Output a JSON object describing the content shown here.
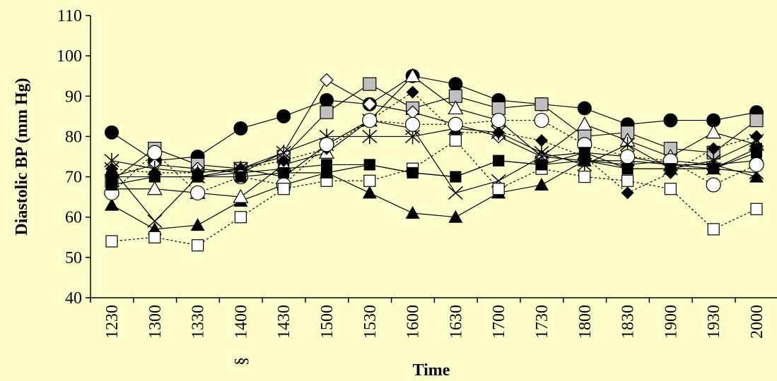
{
  "chart_data": {
    "type": "line",
    "xlabel": "Time",
    "ylabel": "Diastolic BP (mm Hg)",
    "ylim": [
      40,
      110
    ],
    "yticks": [
      40,
      50,
      60,
      70,
      80,
      90,
      100,
      110
    ],
    "categories": [
      "1230",
      "1300",
      "1330",
      "1400",
      "1430",
      "1500",
      "1530",
      "1600",
      "1630",
      "1700",
      "1730",
      "1800",
      "1830",
      "1900",
      "1930",
      "2000"
    ],
    "annotations": [
      {
        "text": "§",
        "category": "1400"
      }
    ],
    "grid": false,
    "series": [
      {
        "marker": "circle-filled",
        "line": "solid",
        "values": [
          81,
          74,
          75,
          82,
          85,
          89,
          88,
          95,
          93,
          89,
          88,
          87,
          83,
          84,
          84,
          86
        ]
      },
      {
        "marker": "square-gray",
        "line": "solid",
        "values": [
          69,
          77,
          73,
          72,
          75,
          86,
          93,
          87,
          90,
          87,
          88,
          80,
          81,
          77,
          76,
          84
        ]
      },
      {
        "marker": "diamond-open",
        "line": "solid",
        "values": [
          70,
          73,
          72,
          71,
          76,
          94,
          88,
          86,
          83,
          80,
          75,
          74,
          73,
          74,
          73,
          74
        ]
      },
      {
        "marker": "square-filled",
        "line": "solid",
        "values": [
          70,
          70,
          70,
          71,
          72,
          73,
          73,
          71,
          70,
          74,
          73,
          74,
          72,
          72,
          72,
          76
        ]
      },
      {
        "marker": "triangle-filled",
        "line": "solid",
        "values": [
          63,
          57,
          58,
          64,
          68,
          71,
          66,
          61,
          60,
          66,
          68,
          74,
          74,
          73,
          73,
          70
        ]
      },
      {
        "marker": "triangle-open",
        "line": "solid",
        "values": [
          67,
          67,
          66,
          65,
          73,
          76,
          84,
          95,
          87,
          84,
          75,
          83,
          79,
          75,
          81,
          78
        ]
      },
      {
        "marker": "x",
        "line": "solid",
        "values": [
          72,
          59,
          70,
          72,
          70,
          78,
          84,
          82,
          66,
          69,
          75,
          76,
          75,
          73,
          72,
          71
        ]
      },
      {
        "marker": "star",
        "line": "solid",
        "values": [
          74,
          72,
          71,
          72,
          76,
          80,
          80,
          80,
          82,
          81,
          76,
          73,
          78,
          72,
          74,
          79
        ]
      },
      {
        "marker": "diamond-filled",
        "line": "dotted",
        "values": [
          72,
          71,
          71,
          72,
          74,
          77,
          84,
          91,
          81,
          81,
          79,
          75,
          66,
          71,
          77,
          80
        ]
      },
      {
        "marker": "circle-open",
        "line": "dotted",
        "values": [
          66,
          76,
          66,
          70,
          68,
          78,
          84,
          83,
          83,
          84,
          84,
          78,
          75,
          74,
          68,
          73
        ]
      },
      {
        "marker": "square-open",
        "line": "dotted",
        "values": [
          54,
          55,
          53,
          60,
          67,
          69,
          69,
          72,
          79,
          67,
          72,
          70,
          69,
          67,
          57,
          62
        ]
      },
      {
        "marker": "square-filled",
        "line": "solid",
        "values": [
          68,
          70,
          70,
          70,
          71,
          71,
          73,
          71,
          70,
          74,
          73,
          76,
          72,
          72,
          72,
          77
        ]
      }
    ]
  }
}
